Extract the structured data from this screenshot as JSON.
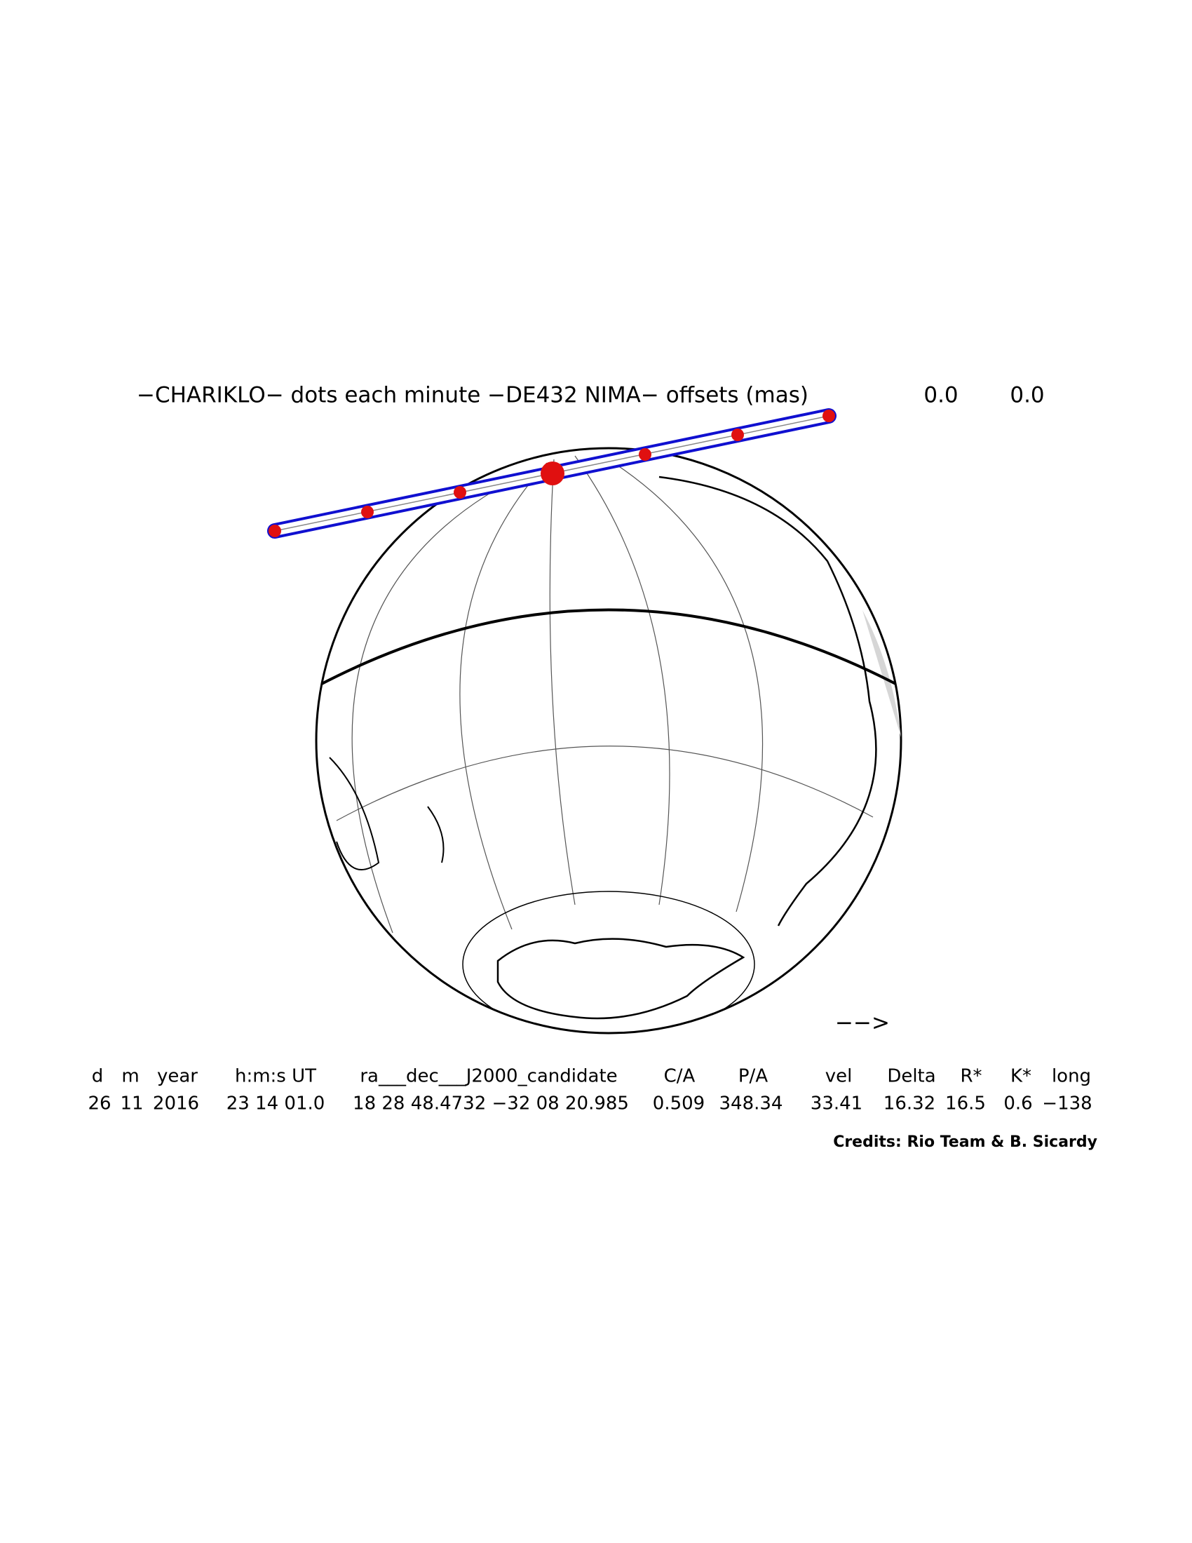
{
  "title": "−CHARIKLO− dots each minute −DE432 NIMA− offsets (mas)",
  "offsets": [
    "0.0",
    "0.0"
  ],
  "direction": "−−>",
  "table": {
    "header": [
      "d",
      "m",
      "year",
      "h:m:s UT",
      "ra___dec___J2000_candidate",
      "C/A",
      "P/A",
      "vel",
      "Delta",
      "R*",
      "K*",
      "long"
    ],
    "values": [
      "26",
      "11",
      "2016",
      "23 14 01.0",
      "18 28 48.4732 −32 08 20.985",
      "0.509",
      "348.34",
      "33.41",
      "16.32",
      "16.5",
      "0.6",
      "−138"
    ]
  },
  "credits": "Credits: Rio Team & B. Sicardy"
}
